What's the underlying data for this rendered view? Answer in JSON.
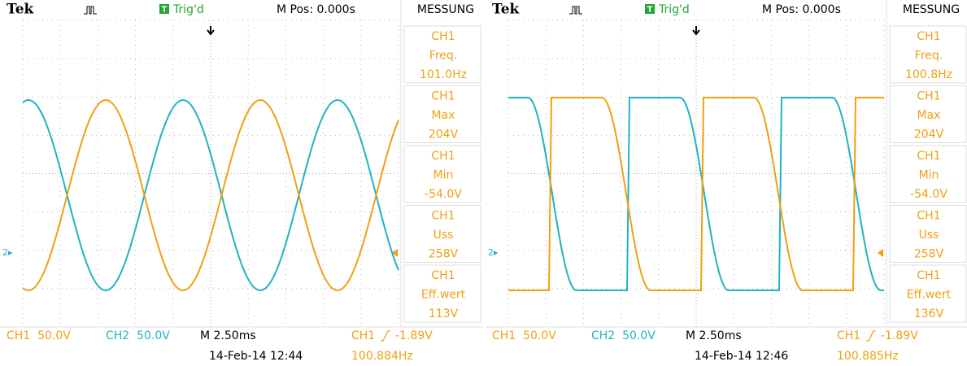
{
  "panels": [
    {
      "header": {
        "brand": "Tek",
        "trigger_state": "Trig'd",
        "position": "M Pos: 0.000s",
        "menu": "MESSUNG"
      },
      "measurements": [
        {
          "channel": "CH1",
          "name": "Freq.",
          "value": "101.0Hz"
        },
        {
          "channel": "CH1",
          "name": "Max",
          "value": "204V"
        },
        {
          "channel": "CH1",
          "name": "Min",
          "value": "-54.0V"
        },
        {
          "channel": "CH1",
          "name": "Uss",
          "value": "258V"
        },
        {
          "channel": "CH1",
          "name": "Eff.wert",
          "value": "113V"
        }
      ],
      "footer": {
        "ch1": "CH1  50.0V",
        "ch2": "CH2  50.0V",
        "timebase": "M 2.50ms",
        "trigger_source": "CH1",
        "trigger_level": "-1.89V",
        "date": "14-Feb-14 12:44",
        "frequency": "100.884Hz"
      }
    },
    {
      "header": {
        "brand": "Tek",
        "trigger_state": "Trig'd",
        "position": "M Pos: 0.000s",
        "menu": "MESSUNG"
      },
      "measurements": [
        {
          "channel": "CH1",
          "name": "Freq.",
          "value": "100.8Hz"
        },
        {
          "channel": "CH1",
          "name": "Max",
          "value": "204V"
        },
        {
          "channel": "CH1",
          "name": "Min",
          "value": "-54.0V"
        },
        {
          "channel": "CH1",
          "name": "Uss",
          "value": "258V"
        },
        {
          "channel": "CH1",
          "name": "Eff.wert",
          "value": "136V"
        }
      ],
      "footer": {
        "ch1": "CH1  50.0V",
        "ch2": "CH2  50.0V",
        "timebase": "M 2.50ms",
        "trigger_source": "CH1",
        "trigger_level": "-1.89V",
        "date": "14-Feb-14 12:46",
        "frequency": "100.885Hz"
      }
    }
  ]
}
